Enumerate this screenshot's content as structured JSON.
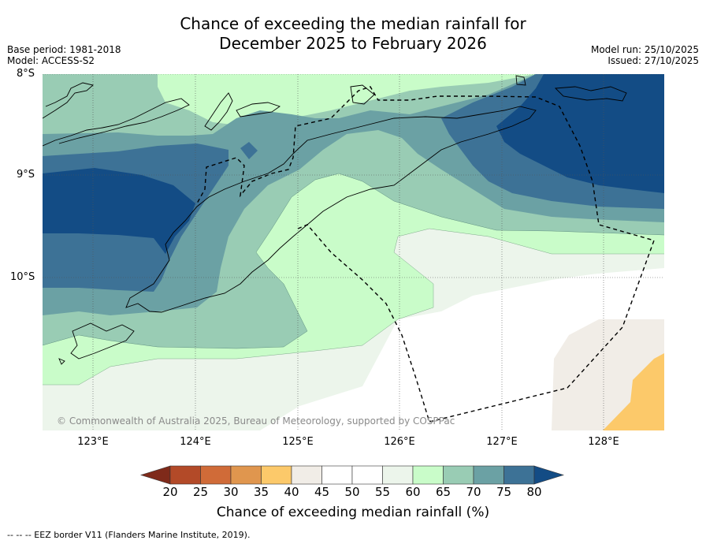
{
  "title": {
    "line1": "Chance of exceeding the median rainfall for",
    "line2": "December 2025 to February 2026"
  },
  "meta_left": {
    "base_period": "Base period: 1981-2018",
    "model": "Model: ACCESS-S2"
  },
  "meta_right": {
    "model_run": "Model run: 25/10/2025",
    "issued": "Issued: 27/10/2025"
  },
  "map": {
    "lat_labels": [
      "8°S",
      "9°S",
      "10°S"
    ],
    "lon_labels": [
      "123°E",
      "124°E",
      "125°E",
      "126°E",
      "127°E",
      "128°E"
    ],
    "copyright": "© Commonwealth of Australia 2025, Bureau of Meteorology, supported by COSPPac",
    "eez_label": "EEZ border"
  },
  "colorbar": {
    "title": "Chance of exceeding median rainfall (%)",
    "ticks": [
      "20",
      "25",
      "30",
      "35",
      "40",
      "45",
      "50",
      "55",
      "60",
      "65",
      "70",
      "75",
      "80"
    ],
    "colors": [
      "#7f2a1a",
      "#b34a28",
      "#d06b38",
      "#e0964e",
      "#fcc96a",
      "#f1ede7",
      "#ffffff",
      "#ffffff",
      "#ecf5eb",
      "#c9fcc9",
      "#99ccb4",
      "#6ba1a4",
      "#3d7296",
      "#134c85"
    ]
  },
  "footnote": "--  --  -- EEZ border V11 (Flanders Marine Institute, 2019)."
}
